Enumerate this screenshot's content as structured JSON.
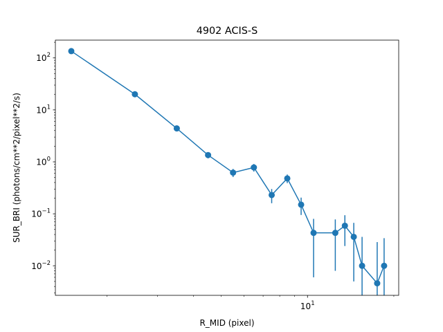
{
  "chart_data": {
    "type": "line",
    "title": "4902 ACIS-S",
    "xlabel": "R_MID (pixel)",
    "ylabel": "SUR_BRI (photons/cm**2/pixel**2/s)",
    "xscale": "log",
    "yscale": "log",
    "xlim": [
      1.32,
      20.8
    ],
    "ylim": [
      0.0027,
      220
    ],
    "grid": false,
    "legend": "none",
    "color": "#1f77b4",
    "x_major_ticks": [
      {
        "value": 10,
        "label": "10",
        "exp": "1"
      }
    ],
    "x_minor_ticks": [
      2,
      3,
      4,
      5,
      6,
      7,
      8,
      9,
      20
    ],
    "y_major_ticks": [
      {
        "value": 0.01,
        "label": "10",
        "exp": "−2"
      },
      {
        "value": 0.1,
        "label": "10",
        "exp": "−1"
      },
      {
        "value": 1,
        "label": "10",
        "exp": "0"
      },
      {
        "value": 10,
        "label": "10",
        "exp": "1"
      },
      {
        "value": 100,
        "label": "10",
        "exp": "2"
      }
    ],
    "series": [
      {
        "x": [
          1.5,
          2.5,
          3.5,
          4.5,
          5.5,
          6.5,
          7.5,
          8.5,
          9.5,
          10.5,
          12.5,
          13.5,
          14.5,
          15.5,
          17.5,
          18.5
        ],
        "y": [
          135,
          20,
          4.4,
          1.35,
          0.62,
          0.78,
          0.23,
          0.48,
          0.15,
          0.043,
          0.043,
          0.059,
          0.036,
          0.01,
          0.0046,
          0.01
        ],
        "yerr": [
          5,
          1.8,
          0.45,
          0.18,
          0.11,
          0.13,
          0.07,
          0.09,
          0.055,
          0.037,
          0.035,
          0.035,
          0.031,
          0.026,
          0.024,
          0.024
        ]
      }
    ]
  }
}
